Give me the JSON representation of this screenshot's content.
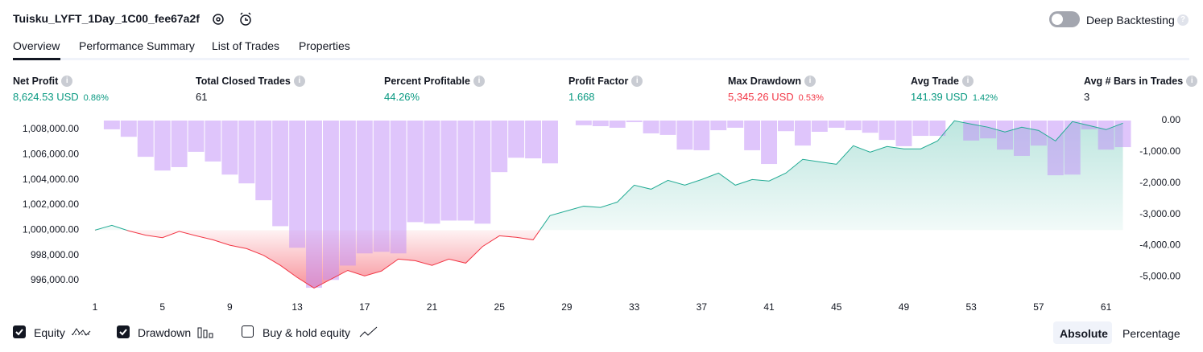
{
  "header": {
    "title": "Tuisku_LYFT_1Day_1C00_fee67a2f",
    "deep_backtesting": "Deep Backtesting"
  },
  "tabs": [
    "Overview",
    "Performance Summary",
    "List of Trades",
    "Properties"
  ],
  "metrics": [
    {
      "label": "Net Profit",
      "value": "8,624.53 USD",
      "pct": "0.86%",
      "color": "#089981"
    },
    {
      "label": "Total Closed Trades",
      "value": "61",
      "color": "#131722"
    },
    {
      "label": "Percent Profitable",
      "value": "44.26%",
      "color": "#089981"
    },
    {
      "label": "Profit Factor",
      "value": "1.668",
      "color": "#089981"
    },
    {
      "label": "Max Drawdown",
      "value": "5,345.26 USD",
      "pct": "0.53%",
      "color": "#f23645"
    },
    {
      "label": "Avg Trade",
      "value": "141.39 USD",
      "pct": "1.42%",
      "color": "#089981"
    },
    {
      "label": "Avg # Bars in Trades",
      "value": "3",
      "color": "#131722"
    }
  ],
  "chart_data": {
    "type": "equity-drawdown",
    "x": [
      1,
      2,
      3,
      4,
      5,
      6,
      7,
      8,
      9,
      10,
      11,
      12,
      13,
      14,
      15,
      16,
      17,
      18,
      19,
      20,
      21,
      22,
      23,
      24,
      25,
      26,
      27,
      28,
      29,
      30,
      31,
      32,
      33,
      34,
      35,
      36,
      37,
      38,
      39,
      40,
      41,
      42,
      43,
      44,
      45,
      46,
      47,
      48,
      49,
      50,
      51,
      52,
      53,
      54,
      55,
      56,
      57,
      58,
      59,
      60,
      61,
      62
    ],
    "xlim": [
      0.5,
      62.5
    ],
    "xticks": [
      1,
      5,
      9,
      13,
      17,
      21,
      25,
      29,
      33,
      37,
      41,
      45,
      49,
      53,
      57,
      61
    ],
    "ylim": [
      995300,
      1008700
    ],
    "yticks": [
      {
        "value": 1008000,
        "label": "1,008,000.00"
      },
      {
        "value": 1006000,
        "label": "1,006,000.00"
      },
      {
        "value": 1004000,
        "label": "1,004,000.00"
      },
      {
        "value": 1002000,
        "label": "1,002,000.00"
      },
      {
        "value": 1000000,
        "label": "1,000,000.00"
      },
      {
        "value": 998000,
        "label": "998,000.00"
      },
      {
        "value": 996000,
        "label": "996,000.00"
      }
    ],
    "y2lim": [
      -5400,
      0
    ],
    "y2ticks": [
      {
        "value": 0,
        "label": "0.00"
      },
      {
        "value": -1000,
        "label": "-1,000.00"
      },
      {
        "value": -2000,
        "label": "-2,000.00"
      },
      {
        "value": -3000,
        "label": "-3,000.00"
      },
      {
        "value": -4000,
        "label": "-4,000.00"
      },
      {
        "value": -5000,
        "label": "-5,000.00"
      }
    ],
    "series": [
      {
        "name": "Equity",
        "type": "line",
        "color": "#22ab94",
        "color_below": "#f23645",
        "values": [
          1000000,
          1000380,
          999940,
          999600,
          999400,
          999900,
          999550,
          999230,
          998800,
          998530,
          998000,
          997200,
          996240,
          995400,
          996100,
          996800,
          996360,
          996750,
          997700,
          997570,
          997200,
          997700,
          997380,
          998700,
          999550,
          999430,
          999230,
          1001150,
          1001530,
          1001900,
          1001800,
          1002230,
          1003570,
          1003250,
          1003950,
          1003570,
          1004020,
          1004530,
          1003570,
          1004020,
          1003900,
          1004530,
          1005620,
          1005420,
          1005230,
          1006700,
          1006190,
          1006640,
          1006450,
          1006450,
          1007080,
          1008680,
          1008420,
          1008170,
          1007790,
          1008170,
          1007910,
          1007080,
          1008620,
          1008300,
          1007980,
          1008490
        ]
      },
      {
        "name": "Drawdown",
        "type": "bar",
        "axis": "y2",
        "color": "#c08cf7",
        "values": [
          0,
          -280,
          -520,
          -1160,
          -1600,
          -1490,
          -1000,
          -1310,
          -1730,
          -2010,
          -2550,
          -3380,
          -4070,
          -5350,
          -5100,
          -4640,
          -4250,
          -4200,
          -4250,
          -3250,
          -3300,
          -3200,
          -3200,
          -3300,
          -1650,
          -1190,
          -1210,
          -1370,
          0,
          -150,
          -180,
          -230,
          -50,
          -410,
          -460,
          -930,
          -950,
          -310,
          -230,
          -950,
          -1390,
          -340,
          -800,
          -360,
          -230,
          -310,
          -390,
          -620,
          -820,
          -490,
          -490,
          0,
          -640,
          -570,
          -930,
          -1130,
          -800,
          -1750,
          -1730,
          -280,
          -930,
          -850
        ]
      }
    ]
  },
  "controls": {
    "buy_hold": "Buy & hold equity",
    "absolute": "Absolute",
    "percentage": "Percentage"
  }
}
